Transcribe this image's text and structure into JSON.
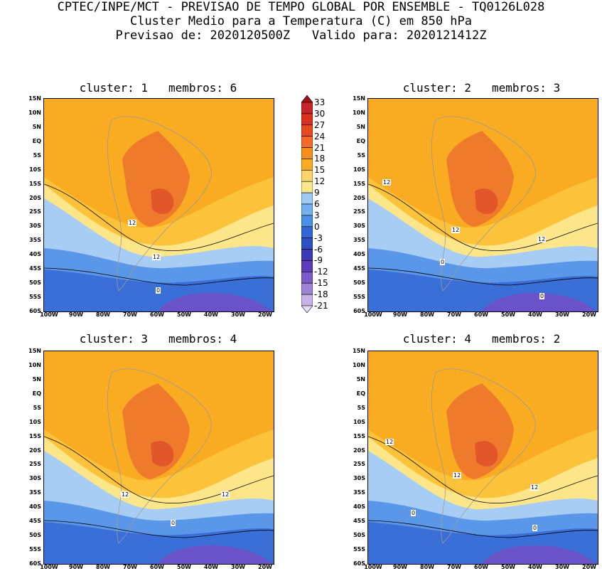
{
  "header": {
    "line1": "CPTEC/INPE/MCT - PREVISAO DE TEMPO GLOBAL POR ENSEMBLE - TQ0126L028",
    "line2": "Cluster Medio para a Temperatura (C) em 850 hPa",
    "line3": "Previsao de: 2020120500Z   Valido para: 2020121412Z"
  },
  "panels": [
    {
      "title": "cluster: 1   membros: 6",
      "labels": [
        "12",
        "12",
        "0"
      ]
    },
    {
      "title": "cluster: 2   membros: 3",
      "labels": [
        "12",
        "12",
        "12",
        "0",
        "0"
      ]
    },
    {
      "title": "cluster: 3   membros: 4",
      "labels": [
        "12",
        "12",
        "0"
      ]
    },
    {
      "title": "cluster: 4   membros: 2",
      "labels": [
        "12",
        "12",
        "12",
        "0",
        "0"
      ]
    }
  ],
  "lat_labels": [
    "15N",
    "10N",
    "5N",
    "EQ",
    "5S",
    "10S",
    "15S",
    "20S",
    "25S",
    "30S",
    "35S",
    "40S",
    "45S",
    "50S",
    "55S",
    "60S"
  ],
  "lon_labels": [
    "100W",
    "90W",
    "80W",
    "70W",
    "60W",
    "50W",
    "40W",
    "30W",
    "20W"
  ],
  "colorbar": {
    "labels": [
      "33",
      "30",
      "27",
      "24",
      "21",
      "18",
      "15",
      "12",
      "9",
      "6",
      "3",
      "0",
      "-3",
      "-6",
      "-9",
      "-12",
      "-15",
      "-18",
      "-21"
    ],
    "colors": [
      "#a50f15",
      "#c8242a",
      "#d7301f",
      "#e84a1f",
      "#f2692a",
      "#f5901c",
      "#f9ab22",
      "#fcd36a",
      "#fbe889",
      "#9ec9f5",
      "#74aff0",
      "#4d8fe6",
      "#3366d6",
      "#2d4fc4",
      "#3d38b5",
      "#5a3fb8",
      "#7b5bc8",
      "#9d84d6",
      "#c4b5e5",
      "#e3dbf2"
    ]
  }
}
